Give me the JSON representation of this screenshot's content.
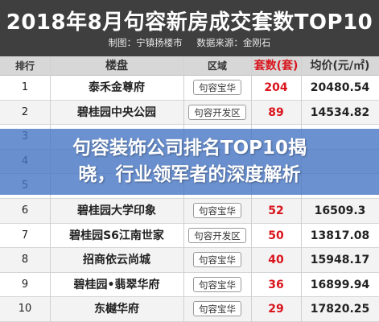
{
  "header": {
    "title": "2018年8月句容新房成交套数TOP10",
    "credit": "制图：宁镇扬楼市",
    "source": "数据来源：金刚石"
  },
  "table": {
    "columns": [
      "排行",
      "楼盘",
      "区域",
      "套数(套)",
      "均价(元/㎡)"
    ],
    "rows": [
      {
        "rank": "1",
        "name": "泰禾金尊府",
        "area": "句容宝华",
        "count": "204",
        "price": "20480.54"
      },
      {
        "rank": "2",
        "name": "碧桂园中央公园",
        "area": "句容开发区",
        "count": "89",
        "price": "14534.82"
      },
      {
        "rank": "3",
        "name": "",
        "area": "",
        "count": "",
        "price": ""
      },
      {
        "rank": "4",
        "name": "",
        "area": "",
        "count": "",
        "price": ""
      },
      {
        "rank": "5",
        "name": "",
        "area": "",
        "count": "",
        "price": ""
      },
      {
        "rank": "6",
        "name": "碧桂园大学印象",
        "area": "句容宝华",
        "count": "52",
        "price": "16509.3"
      },
      {
        "rank": "7",
        "name": "碧桂园S6江南世家",
        "area": "句容开发区",
        "count": "50",
        "price": "13817.08"
      },
      {
        "rank": "8",
        "name": "招商依云尚城",
        "area": "句容宝华",
        "count": "40",
        "price": "15948.17"
      },
      {
        "rank": "9",
        "name": "碧桂园•翡翠华府",
        "area": "句容宝华",
        "count": "36",
        "price": "16899.94"
      },
      {
        "rank": "10",
        "name": "东樾华府",
        "area": "句容宝华",
        "count": "29",
        "price": "17820.25"
      }
    ]
  },
  "banner": {
    "line1": "句容装饰公司排名TOP10揭",
    "line2": "晓，行业领军者的深度解析"
  }
}
